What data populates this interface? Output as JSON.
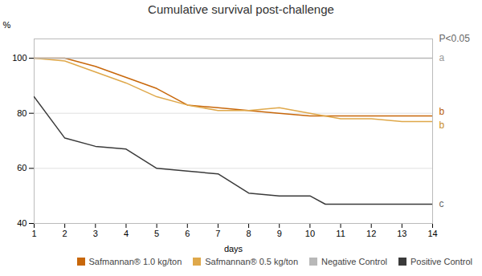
{
  "chart_data": {
    "type": "line",
    "title": "Cumulative survival post-challenge",
    "xlabel": "days",
    "ylabel": "%",
    "xlim": [
      1,
      14
    ],
    "ylim": [
      40,
      107
    ],
    "xticks": [
      1,
      2,
      3,
      4,
      5,
      6,
      7,
      8,
      9,
      10,
      11,
      12,
      13,
      14
    ],
    "yticks": [
      40,
      60,
      80,
      100
    ],
    "grid": true,
    "legend": "lower right",
    "series": [
      {
        "name": "Safmannan® 1.0 kg/ton",
        "color": "#c8670a",
        "x": [
          1,
          2,
          3,
          4,
          5,
          6,
          7,
          8,
          9,
          10,
          11,
          12,
          13,
          14
        ],
        "values": [
          100,
          100,
          97,
          93,
          89,
          83,
          82,
          81,
          80,
          79,
          79,
          79,
          79,
          79
        ]
      },
      {
        "name": "Safmannan® 0.5 kg/ton",
        "color": "#dfa84a",
        "x": [
          1,
          2,
          3,
          4,
          5,
          6,
          7,
          8,
          9,
          10,
          11,
          12,
          13,
          14
        ],
        "values": [
          100,
          99,
          95,
          91,
          86,
          83,
          81,
          81,
          82,
          80,
          78,
          78,
          77,
          77
        ]
      },
      {
        "name": "Negative Control",
        "color": "#b8b8b8",
        "x": [
          1,
          2,
          3,
          4,
          5,
          6,
          7,
          8,
          9,
          10,
          11,
          12,
          13,
          14
        ],
        "values": [
          100,
          100,
          100,
          100,
          100,
          100,
          100,
          100,
          100,
          100,
          100,
          100,
          100,
          100
        ]
      },
      {
        "name": "Positive Control",
        "color": "#3a3a3a",
        "x": [
          1,
          2,
          3,
          4,
          5,
          6,
          7,
          8,
          9,
          10,
          10.5,
          11,
          12,
          13,
          14
        ],
        "values": [
          86,
          71,
          68,
          67,
          60,
          59,
          58,
          51,
          50,
          50,
          47,
          47,
          47,
          47,
          47
        ]
      }
    ],
    "annotations": [
      {
        "text": "a",
        "x": 14,
        "y": 100,
        "color": "#999999"
      },
      {
        "text": "b",
        "x": 14,
        "y": 79,
        "color": "#b85e0a"
      },
      {
        "text": "b",
        "x": 14,
        "y": 77,
        "color": "#c9902a"
      },
      {
        "text": "c",
        "x": 14,
        "y": 47,
        "color": "#666666"
      },
      {
        "text": "P<0.05",
        "x": 14,
        "y": 107,
        "color": "#666666"
      }
    ]
  }
}
